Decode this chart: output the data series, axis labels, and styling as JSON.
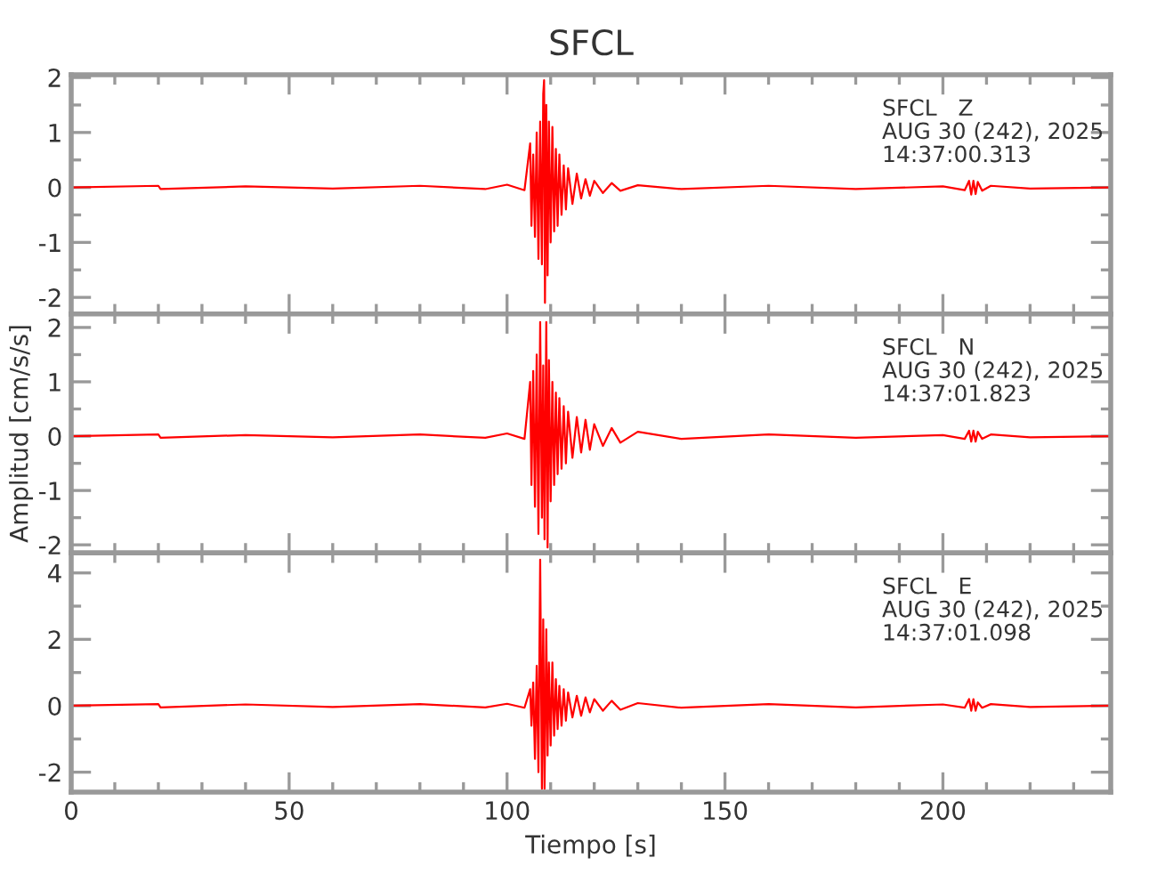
{
  "chart_data": [
    {
      "type": "line",
      "title": "SFCL",
      "xlim": [
        0,
        238.5
      ],
      "ylim": [
        -2.3,
        2.05
      ],
      "yticks": [
        -2,
        -1,
        0,
        1,
        2
      ],
      "xticks": [
        0,
        50,
        100,
        150,
        200
      ],
      "tick_labels": "y",
      "grid": false,
      "annotations": [
        "SFCL   Z\nAUG 30 (242), 2025\n14:37:00.313"
      ],
      "series": [
        {
          "color": "#ff0000",
          "x": [
            0,
            20,
            20.5,
            40,
            60,
            80,
            95,
            100,
            104,
            105.3,
            105.6,
            106,
            106.4,
            106.8,
            107.2,
            107.6,
            108,
            108.3,
            108.5,
            108.7,
            109,
            109.3,
            109.6,
            110,
            110.4,
            110.8,
            111.2,
            111.6,
            112,
            112.5,
            113,
            113.5,
            114,
            115,
            116,
            117,
            118,
            119,
            120,
            122,
            124,
            126,
            130,
            140,
            160,
            180,
            200,
            205,
            206,
            206.5,
            207,
            207.5,
            208,
            209,
            211,
            220,
            238.5
          ],
          "values": [
            0,
            0.03,
            -0.03,
            0.02,
            -0.02,
            0.03,
            -0.03,
            0.05,
            -0.05,
            0.8,
            -0.7,
            0.6,
            -0.9,
            1.0,
            -1.3,
            1.2,
            -1.4,
            1.7,
            1.95,
            -2.1,
            1.5,
            -1.6,
            1.2,
            -1.0,
            1.1,
            -0.8,
            0.7,
            -0.7,
            0.6,
            -0.5,
            0.4,
            -0.4,
            0.35,
            -0.3,
            0.25,
            -0.2,
            0.15,
            -0.15,
            0.12,
            -0.1,
            0.08,
            -0.06,
            0.04,
            -0.03,
            0.03,
            -0.03,
            0.02,
            -0.05,
            0.12,
            -0.13,
            0.12,
            -0.12,
            0.1,
            -0.06,
            0.03,
            -0.02,
            0
          ]
        }
      ]
    },
    {
      "type": "line",
      "ylabel": "Amplitud [cm/s/s]",
      "xlim": [
        0,
        238.5
      ],
      "ylim": [
        -2.15,
        2.25
      ],
      "yticks": [
        -2,
        -1,
        0,
        1,
        2
      ],
      "xticks": [
        0,
        50,
        100,
        150,
        200
      ],
      "tick_labels": "y",
      "grid": false,
      "annotations": [
        "SFCL   N\nAUG 30 (242), 2025\n14:37:01.823"
      ],
      "series": [
        {
          "color": "#ff0000",
          "x": [
            0,
            20,
            20.5,
            40,
            60,
            80,
            95,
            100,
            104,
            105.3,
            105.6,
            106,
            106.4,
            106.8,
            107.2,
            107.6,
            108,
            108.3,
            108.6,
            109,
            109.3,
            109.6,
            110,
            110.4,
            110.8,
            111.2,
            111.6,
            112,
            112.5,
            113,
            113.5,
            114,
            115,
            116,
            117,
            118,
            119,
            120,
            122,
            124,
            126,
            130,
            140,
            160,
            180,
            200,
            205,
            206,
            206.5,
            207,
            207.5,
            208,
            209,
            211,
            220,
            238.5
          ],
          "values": [
            0,
            0.03,
            -0.03,
            0.02,
            -0.02,
            0.03,
            -0.03,
            0.05,
            -0.05,
            1.0,
            -0.9,
            1.2,
            -1.3,
            1.5,
            -1.8,
            2.1,
            -1.5,
            1.3,
            -1.9,
            2.1,
            -2.05,
            1.4,
            -1.2,
            1.0,
            -0.9,
            0.8,
            -0.7,
            0.7,
            -0.6,
            0.55,
            -0.5,
            0.45,
            -0.4,
            0.35,
            -0.3,
            0.3,
            -0.25,
            0.22,
            -0.18,
            0.15,
            -0.12,
            0.08,
            -0.05,
            0.03,
            -0.03,
            0.02,
            -0.05,
            0.1,
            -0.1,
            0.1,
            -0.1,
            0.08,
            -0.05,
            0.03,
            -0.02,
            0
          ]
        }
      ]
    },
    {
      "type": "line",
      "xlabel": "Tiempo [s]",
      "xlim": [
        0,
        238.5
      ],
      "ylim": [
        -2.6,
        4.6
      ],
      "yticks": [
        -2,
        0,
        2,
        4
      ],
      "xticks": [
        0,
        50,
        100,
        150,
        200
      ],
      "grid": false,
      "annotations": [
        "SFCL   E\nAUG 30 (242), 2025\n14:37:01.098"
      ],
      "series": [
        {
          "color": "#ff0000",
          "x": [
            0,
            20,
            20.5,
            40,
            60,
            80,
            95,
            100,
            104,
            105.3,
            105.6,
            106,
            106.4,
            106.8,
            107.2,
            107.6,
            108,
            108.3,
            108.6,
            109,
            109.3,
            109.6,
            110,
            110.4,
            110.8,
            111.2,
            111.6,
            112,
            112.5,
            113,
            113.5,
            114,
            115,
            116,
            117,
            118,
            119,
            120,
            122,
            124,
            126,
            130,
            140,
            160,
            180,
            200,
            205,
            206,
            206.5,
            207,
            207.5,
            208,
            209,
            211,
            220,
            238.5
          ],
          "values": [
            0,
            0.05,
            -0.05,
            0.04,
            -0.04,
            0.05,
            -0.05,
            0.06,
            -0.06,
            0.5,
            -0.6,
            0.7,
            -1.6,
            1.2,
            -2.0,
            4.4,
            -2.5,
            2.6,
            -2.5,
            2.3,
            -1.5,
            1.3,
            -1.2,
            1.3,
            -0.9,
            0.8,
            -0.7,
            0.6,
            -0.6,
            0.5,
            -0.45,
            0.4,
            -0.35,
            0.3,
            -0.3,
            0.25,
            -0.2,
            0.2,
            -0.15,
            0.15,
            -0.12,
            0.08,
            -0.06,
            0.05,
            -0.05,
            0.04,
            -0.06,
            0.2,
            -0.15,
            0.2,
            -0.15,
            0.1,
            -0.06,
            0.05,
            -0.04,
            0
          ]
        }
      ]
    }
  ]
}
